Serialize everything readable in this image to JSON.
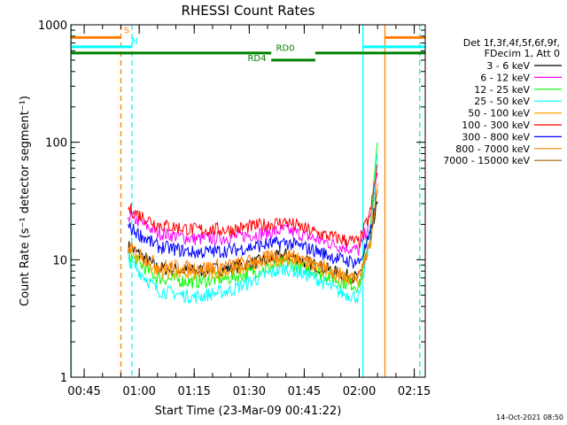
{
  "chart_data": {
    "type": "line",
    "title": "RHESSI Count Rates",
    "xlabel": "Start Time (23-Mar-09 00:41:22)",
    "ylabel": "Count Rate (s⁻¹ detector segment⁻¹)",
    "yscale": "log",
    "ylim": [
      1,
      1000
    ],
    "xlim": [
      "00:41:22",
      "02:18:00"
    ],
    "x_tick_labels": [
      "00:45",
      "01:00",
      "01:15",
      "01:30",
      "01:45",
      "02:00",
      "02:15"
    ],
    "y_tick_labels": [
      "1",
      "10",
      "100",
      "1000"
    ],
    "legend_header": [
      "Det 1f,3f,4f,5f,6f,9f,",
      "FDecim 1, Att 0"
    ],
    "legend_placement": "right",
    "series": [
      {
        "name": "3 - 6 keV",
        "color": "#000000",
        "points": [
          [
            "00:57",
            13
          ],
          [
            "01:05",
            8.5
          ],
          [
            "01:15",
            8
          ],
          [
            "01:25",
            8.5
          ],
          [
            "01:35",
            10
          ],
          [
            "01:40",
            11
          ],
          [
            "01:48",
            9
          ],
          [
            "01:55",
            7.5
          ],
          [
            "02:00",
            7
          ],
          [
            "02:03",
            14
          ],
          [
            "02:05",
            30
          ]
        ]
      },
      {
        "name": "6 - 12 keV",
        "color": "#ff00ff",
        "points": [
          [
            "00:57",
            24
          ],
          [
            "01:05",
            17
          ],
          [
            "01:15",
            15
          ],
          [
            "01:25",
            15.5
          ],
          [
            "01:35",
            17
          ],
          [
            "01:40",
            18
          ],
          [
            "01:48",
            15
          ],
          [
            "01:55",
            13
          ],
          [
            "02:00",
            12
          ],
          [
            "02:03",
            22
          ],
          [
            "02:05",
            55
          ]
        ]
      },
      {
        "name": "12 - 25 keV",
        "color": "#00ff00",
        "points": [
          [
            "00:57",
            11
          ],
          [
            "01:05",
            7
          ],
          [
            "01:15",
            6.5
          ],
          [
            "01:25",
            7
          ],
          [
            "01:35",
            8.5
          ],
          [
            "01:40",
            9.5
          ],
          [
            "01:48",
            8
          ],
          [
            "01:55",
            6.5
          ],
          [
            "02:00",
            6
          ],
          [
            "02:03",
            20
          ],
          [
            "02:05",
            100
          ]
        ]
      },
      {
        "name": "25 - 50 keV",
        "color": "#00ffff",
        "points": [
          [
            "00:57",
            10
          ],
          [
            "01:05",
            5.5
          ],
          [
            "01:15",
            4.8
          ],
          [
            "01:25",
            5.5
          ],
          [
            "01:35",
            7.5
          ],
          [
            "01:40",
            8.5
          ],
          [
            "01:48",
            7
          ],
          [
            "01:55",
            5.2
          ],
          [
            "02:00",
            4.8
          ],
          [
            "02:03",
            15
          ],
          [
            "02:05",
            80
          ]
        ]
      },
      {
        "name": "50 - 100 keV",
        "color": "#ffa500",
        "points": [
          [
            "00:57",
            12
          ],
          [
            "01:05",
            8
          ],
          [
            "01:15",
            7.5
          ],
          [
            "01:25",
            8
          ],
          [
            "01:35",
            9.5
          ],
          [
            "01:40",
            10.5
          ],
          [
            "01:48",
            9
          ],
          [
            "01:55",
            7
          ],
          [
            "02:00",
            6.5
          ],
          [
            "02:03",
            14
          ],
          [
            "02:05",
            45
          ]
        ]
      },
      {
        "name": "100 - 300 keV",
        "color": "#ff0000",
        "points": [
          [
            "00:57",
            27
          ],
          [
            "01:05",
            20
          ],
          [
            "01:15",
            18
          ],
          [
            "01:25",
            18
          ],
          [
            "01:35",
            20
          ],
          [
            "01:40",
            21
          ],
          [
            "01:48",
            17
          ],
          [
            "01:55",
            15
          ],
          [
            "02:00",
            14
          ],
          [
            "02:03",
            25
          ],
          [
            "02:05",
            65
          ]
        ]
      },
      {
        "name": "300 - 800 keV",
        "color": "#0000ff",
        "points": [
          [
            "00:57",
            19
          ],
          [
            "01:05",
            13
          ],
          [
            "01:15",
            11.5
          ],
          [
            "01:25",
            12
          ],
          [
            "01:35",
            13.5
          ],
          [
            "01:40",
            14
          ],
          [
            "01:48",
            12
          ],
          [
            "01:55",
            10
          ],
          [
            "02:00",
            9.5
          ],
          [
            "02:03",
            16
          ],
          [
            "02:05",
            38
          ]
        ]
      },
      {
        "name": "800 - 7000 keV",
        "color": "#ff8000",
        "points": [
          [
            "00:57",
            13
          ],
          [
            "01:05",
            9
          ],
          [
            "01:15",
            8.5
          ],
          [
            "01:25",
            9
          ],
          [
            "01:35",
            10.5
          ],
          [
            "01:40",
            11
          ],
          [
            "01:48",
            9.5
          ],
          [
            "01:55",
            7.5
          ],
          [
            "02:00",
            7
          ],
          [
            "02:03",
            14
          ],
          [
            "02:05",
            40
          ]
        ]
      },
      {
        "name": "7000 - 15000 keV",
        "color": "#a06000",
        "points": []
      }
    ],
    "annotations": [
      {
        "label": "S",
        "color": "#ff8000",
        "segments": [
          [
            "00:41:22",
            "00:55:00"
          ],
          [
            "02:07:00",
            "02:18:00"
          ]
        ],
        "yval": 780
      },
      {
        "label": "N",
        "color": "#00ffff",
        "segments": [
          [
            "00:41:22",
            "00:58:00"
          ],
          [
            "02:01:00",
            "02:18:00"
          ]
        ],
        "yval": 650
      },
      {
        "label": "RD0",
        "color": "#008000",
        "segments": [
          [
            "00:41:22",
            "01:36:00"
          ],
          [
            "01:48:00",
            "02:18:00"
          ]
        ],
        "yval": 575
      },
      {
        "label": "RD4",
        "color": "#008000",
        "segments": [
          [
            "01:36:00",
            "01:48:00"
          ]
        ],
        "yval": 500
      }
    ],
    "vlines": [
      {
        "t": "00:41:30",
        "color": "#00ffff",
        "dash": false
      },
      {
        "t": "00:55:00",
        "color": "#ff8000",
        "dash": true
      },
      {
        "t": "00:58:00",
        "color": "#00ffff",
        "dash": true
      },
      {
        "t": "02:01:00",
        "color": "#00ffff",
        "dash": false
      },
      {
        "t": "02:07:00",
        "color": "#ff8000",
        "dash": false
      },
      {
        "t": "02:16:30",
        "color": "#ff8000",
        "dash": true
      },
      {
        "t": "02:16:30",
        "color": "#00ffff",
        "dash": true
      }
    ],
    "footer_timestamp": "14-Oct-2021 08:50"
  }
}
